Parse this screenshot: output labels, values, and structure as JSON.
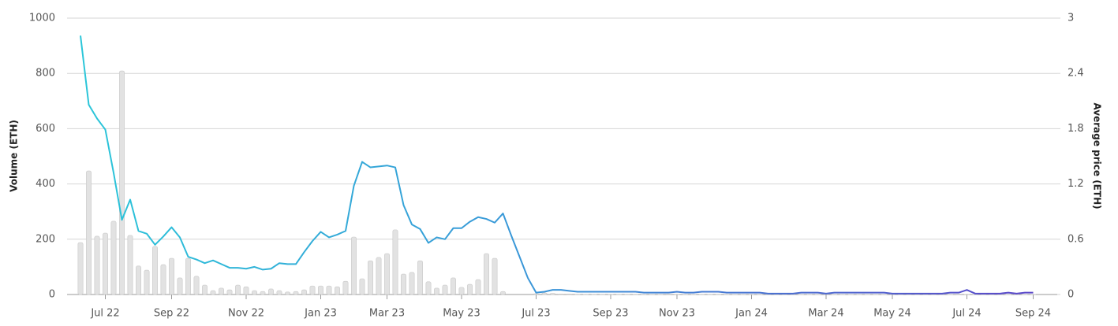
{
  "chart_data": {
    "type": "combo",
    "y_label": "Volume (ETH)",
    "y2_label": "Average price (ETH)",
    "categories": [
      null,
      null,
      null,
      "Jul 22",
      null,
      null,
      null,
      null,
      null,
      null,
      null,
      "Sep 22",
      null,
      null,
      null,
      null,
      null,
      null,
      null,
      null,
      "Nov 22",
      null,
      null,
      null,
      null,
      null,
      null,
      null,
      null,
      "Jan 23",
      null,
      null,
      null,
      null,
      null,
      null,
      null,
      "Mar 23",
      null,
      null,
      null,
      null,
      null,
      null,
      null,
      null,
      "May 23",
      null,
      null,
      null,
      null,
      null,
      null,
      null,
      null,
      "Jul 23",
      null,
      null,
      null,
      null,
      null,
      null,
      null,
      null,
      "Sep 23",
      null,
      null,
      null,
      null,
      null,
      null,
      null,
      "Nov 23",
      null,
      null,
      null,
      null,
      null,
      null,
      null,
      null,
      "Jan 24",
      null,
      null,
      null,
      null,
      null,
      null,
      null,
      null,
      "Mar 24",
      null,
      null,
      null,
      null,
      null,
      null,
      null,
      "May 24",
      null,
      null,
      null,
      null,
      null,
      null,
      null,
      null,
      "Jul 24",
      null,
      null,
      null,
      null,
      null,
      null,
      null,
      "Sep 24"
    ],
    "series": [
      {
        "name": "Volume",
        "type": "bar",
        "axis": "y",
        "color": "#e2e2e2",
        "values": [
          188,
          447,
          211,
          222,
          265,
          809,
          214,
          103,
          88,
          174,
          108,
          131,
          60,
          131,
          66,
          34,
          14,
          23,
          17,
          34,
          28,
          14,
          11,
          20,
          14,
          9,
          11,
          17,
          31,
          31,
          31,
          28,
          48,
          208,
          57,
          122,
          134,
          148,
          234,
          74,
          80,
          122,
          46,
          23,
          34,
          60,
          26,
          37,
          54,
          148,
          131,
          11,
          0,
          0,
          0,
          3,
          6,
          4,
          2,
          2,
          1,
          1,
          1,
          1,
          1,
          1,
          1,
          1,
          1,
          1,
          1,
          2,
          1,
          1,
          1,
          1,
          1,
          1,
          1,
          1,
          1,
          1,
          1,
          1,
          1,
          1,
          1,
          1,
          1,
          1,
          1,
          1,
          1,
          1,
          1,
          1,
          1,
          1,
          1,
          1,
          1,
          1,
          1,
          1,
          1,
          1,
          2,
          1,
          1,
          1,
          1,
          1,
          1,
          1,
          1,
          1
        ]
      },
      {
        "name": "Average price",
        "type": "line",
        "axis": "y2",
        "colors": [
          "#2bc6d9",
          "#3b93d8",
          "#5a46c9"
        ],
        "values": [
          2.81,
          2.06,
          1.91,
          1.79,
          1.32,
          0.81,
          1.03,
          0.69,
          0.66,
          0.54,
          0.63,
          0.73,
          0.62,
          0.41,
          0.38,
          0.34,
          0.37,
          0.33,
          0.29,
          0.29,
          0.28,
          0.3,
          0.27,
          0.28,
          0.34,
          0.33,
          0.33,
          0.46,
          0.58,
          0.68,
          0.62,
          0.65,
          0.69,
          1.18,
          1.44,
          1.38,
          1.39,
          1.4,
          1.38,
          0.97,
          0.76,
          0.71,
          0.56,
          0.62,
          0.6,
          0.72,
          0.72,
          0.79,
          0.84,
          0.82,
          0.78,
          0.88,
          0.64,
          0.41,
          0.18,
          0.02,
          0.03,
          0.05,
          0.05,
          0.04,
          0.03,
          0.03,
          0.03,
          0.03,
          0.03,
          0.03,
          0.03,
          0.03,
          0.02,
          0.02,
          0.02,
          0.02,
          0.03,
          0.02,
          0.02,
          0.03,
          0.03,
          0.03,
          0.02,
          0.02,
          0.02,
          0.02,
          0.02,
          0.01,
          0.01,
          0.01,
          0.01,
          0.02,
          0.02,
          0.02,
          0.01,
          0.02,
          0.02,
          0.02,
          0.02,
          0.02,
          0.02,
          0.02,
          0.01,
          0.01,
          0.01,
          0.01,
          0.01,
          0.01,
          0.01,
          0.02,
          0.02,
          0.05,
          0.01,
          0.01,
          0.01,
          0.01,
          0.02,
          0.01,
          0.02,
          0.02
        ]
      }
    ],
    "ylim": [
      0,
      1000
    ],
    "yticks": [
      0,
      200,
      400,
      600,
      800,
      1000
    ],
    "y2lim": [
      0,
      3
    ],
    "y2ticks": [
      0,
      0.6,
      1.2,
      1.8,
      2.4,
      3
    ],
    "grid": true
  }
}
